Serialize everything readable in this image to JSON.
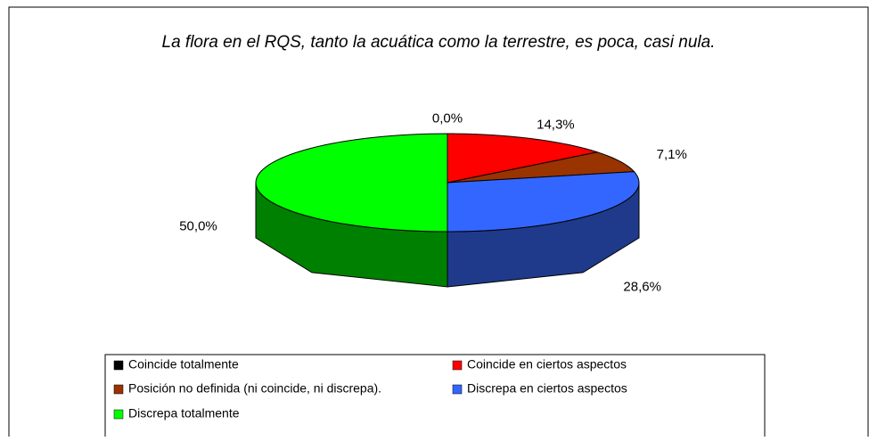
{
  "chart_data": {
    "type": "pie3d",
    "title": "La flora en el RQS, tanto la acuática como la terrestre, es poca, casi nula.",
    "categories": [
      "Coincide totalmente",
      "Coincide en ciertos aspectos",
      "Posición no definida (ni coincide, ni discrepa).",
      "Discrepa en ciertos aspectos",
      "Discrepa totalmente"
    ],
    "values": [
      0,
      14.3,
      7.1,
      28.6,
      50
    ],
    "value_labels": [
      "0,0%",
      "14,3%",
      "7,1%",
      "28,6%",
      "50,0%"
    ],
    "colors": [
      "#000000",
      "#ff0000",
      "#993300",
      "#3366ff",
      "#00ff00"
    ],
    "side_colors": [
      "#000000",
      "#800000",
      "#4d1a00",
      "#1f3a8a",
      "#008000"
    ],
    "legend": "bottom"
  }
}
